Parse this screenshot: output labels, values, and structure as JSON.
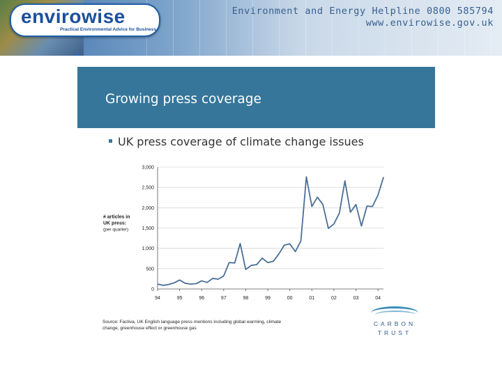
{
  "header": {
    "logo_text": "envirowise",
    "logo_tagline": "Practical Environmental Advice for Business",
    "helpline": "Environment and Energy Helpline 0800 585794",
    "website": "www.envirowise.gov.uk"
  },
  "slide": {
    "title": "Growing press coverage",
    "bullet": "UK press coverage of climate change issues"
  },
  "chart_data": {
    "type": "line",
    "title": "",
    "ylabel": "# articles in UK press",
    "ylabel_sub": "(per quarter)",
    "xlabel": "",
    "ylim": [
      0,
      3000
    ],
    "y_ticks": [
      0,
      500,
      1000,
      1500,
      2000,
      2500,
      3000
    ],
    "y_tick_labels": [
      "0",
      "500",
      "1,000",
      "1,500",
      "2,000",
      "2,500",
      "3,000"
    ],
    "x_range": [
      1994,
      2004.25
    ],
    "x_ticks": [
      1994,
      1995,
      1996,
      1997,
      1998,
      1999,
      2000,
      2001,
      2002,
      2003,
      2004
    ],
    "x_tick_labels": [
      "94",
      "95",
      "96",
      "97",
      "98",
      "99",
      "00",
      "01",
      "02",
      "03",
      "04"
    ],
    "grid": true,
    "color": "#4a6f96",
    "series": [
      {
        "name": "# articles in UK press (per quarter)",
        "x": [
          1994,
          1994.25,
          1994.5,
          1994.75,
          1995,
          1995.25,
          1995.5,
          1995.75,
          1996,
          1996.25,
          1996.5,
          1996.75,
          1997,
          1997.25,
          1997.5,
          1997.75,
          1998,
          1998.25,
          1998.5,
          1998.75,
          1999,
          1999.25,
          1999.5,
          1999.75,
          2000,
          2000.25,
          2000.5,
          2000.75,
          2001,
          2001.25,
          2001.5,
          2001.75,
          2002,
          2002.25,
          2002.5,
          2002.75,
          2003,
          2003.25,
          2003.5,
          2003.75,
          2004,
          2004.25
        ],
        "values": [
          120,
          90,
          110,
          150,
          220,
          140,
          120,
          130,
          200,
          160,
          260,
          240,
          320,
          650,
          640,
          1120,
          480,
          580,
          600,
          760,
          650,
          680,
          860,
          1080,
          1110,
          920,
          1180,
          2760,
          2030,
          2260,
          2080,
          1490,
          1600,
          1870,
          2660,
          1890,
          2080,
          1550,
          2040,
          2030,
          2310,
          2750
        ]
      }
    ],
    "source": "Source: Factiva, UK English language press mentions including global warming, climate change, greenhouse effect or greenhouse gas"
  },
  "footer": {
    "carbon": "CARBON",
    "trust": "TRUST"
  }
}
